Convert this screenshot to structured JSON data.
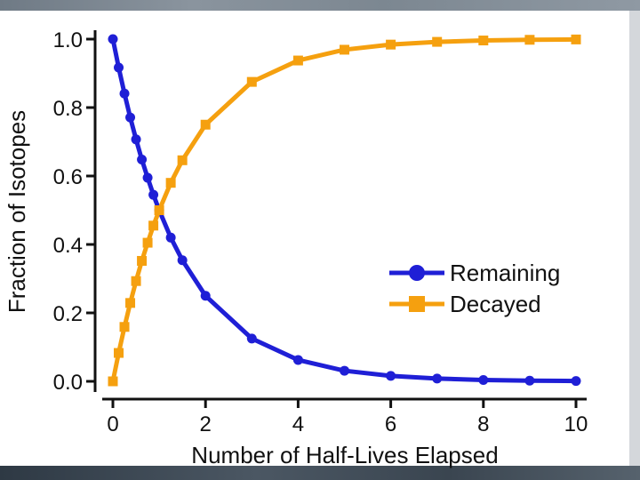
{
  "chart_data": {
    "type": "line",
    "xlabel": "Number of Half-Lives Elapsed",
    "ylabel": "Fraction of Isotopes",
    "xlim": [
      0,
      10
    ],
    "ylim": [
      0,
      1
    ],
    "xticks": [
      0,
      2,
      4,
      6,
      8,
      10
    ],
    "xtick_labels": [
      "0",
      "2",
      "4",
      "6",
      "8",
      "10"
    ],
    "yticks": [
      0,
      0.2,
      0.4,
      0.6,
      0.8,
      1.0
    ],
    "ytick_labels": [
      "0.0",
      "0.2",
      "0.4",
      "0.6",
      "0.8",
      "1.0"
    ],
    "legend_position": "center-right",
    "series": [
      {
        "name": "Remaining",
        "color": "#1f1fd6",
        "marker": "circle",
        "x": [
          0,
          0.125,
          0.25,
          0.375,
          0.5,
          0.625,
          0.75,
          0.875,
          1,
          1.25,
          1.5,
          2,
          3,
          4,
          5,
          6,
          7,
          8,
          9,
          10
        ],
        "values": [
          1.0,
          0.917,
          0.841,
          0.771,
          0.707,
          0.648,
          0.595,
          0.545,
          0.5,
          0.42,
          0.354,
          0.25,
          0.125,
          0.0625,
          0.031,
          0.016,
          0.008,
          0.004,
          0.002,
          0.001
        ]
      },
      {
        "name": "Decayed",
        "color": "#f5a00f",
        "marker": "square",
        "x": [
          0,
          0.125,
          0.25,
          0.375,
          0.5,
          0.625,
          0.75,
          0.875,
          1,
          1.25,
          1.5,
          2,
          3,
          4,
          5,
          6,
          7,
          8,
          9,
          10
        ],
        "values": [
          0.0,
          0.083,
          0.159,
          0.229,
          0.293,
          0.352,
          0.405,
          0.455,
          0.5,
          0.58,
          0.646,
          0.75,
          0.875,
          0.9375,
          0.969,
          0.984,
          0.992,
          0.996,
          0.998,
          0.999
        ]
      }
    ]
  }
}
